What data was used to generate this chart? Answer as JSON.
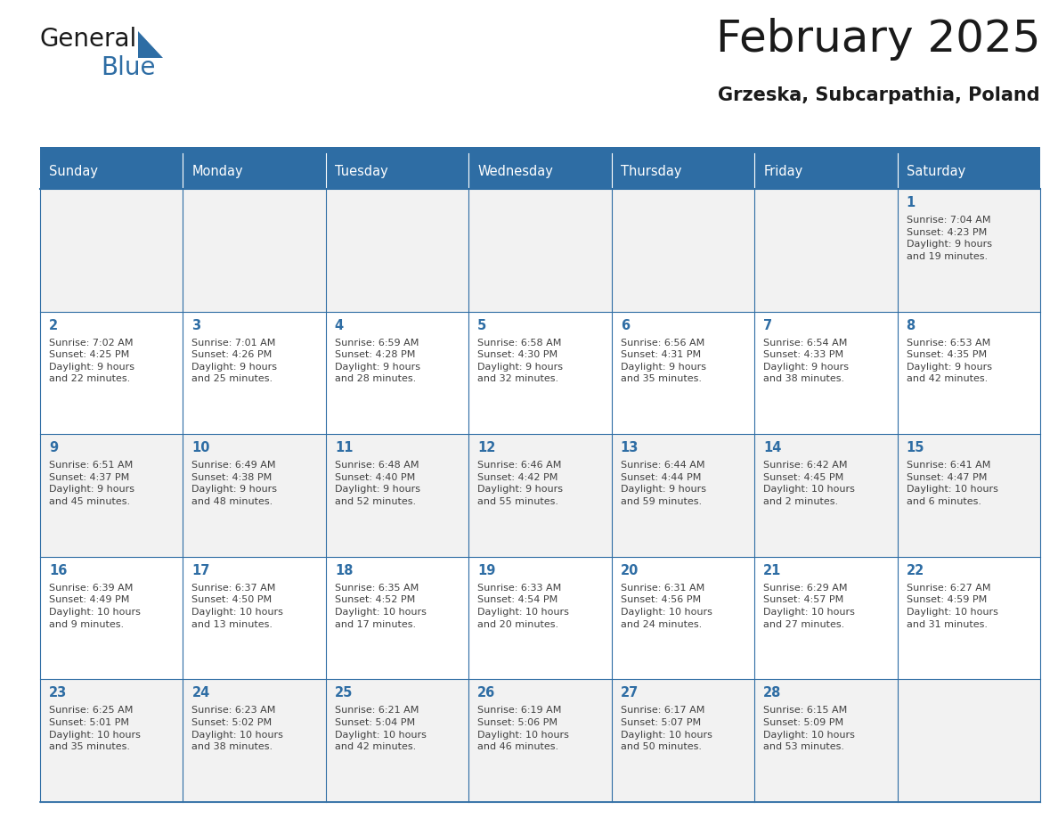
{
  "title": "February 2025",
  "subtitle": "Grzeska, Subcarpathia, Poland",
  "days_of_week": [
    "Sunday",
    "Monday",
    "Tuesday",
    "Wednesday",
    "Thursday",
    "Friday",
    "Saturday"
  ],
  "header_bg": "#2E6DA4",
  "header_text": "#FFFFFF",
  "cell_bg_odd": "#F2F2F2",
  "cell_bg_even": "#FFFFFF",
  "border_color": "#2E6DA4",
  "day_number_color": "#2E6DA4",
  "info_text_color": "#404040",
  "cal_data": [
    [
      null,
      null,
      null,
      null,
      null,
      null,
      {
        "day": 1,
        "sunrise": "7:04 AM",
        "sunset": "4:23 PM",
        "daylight": "9 hours\nand 19 minutes."
      }
    ],
    [
      {
        "day": 2,
        "sunrise": "7:02 AM",
        "sunset": "4:25 PM",
        "daylight": "9 hours\nand 22 minutes."
      },
      {
        "day": 3,
        "sunrise": "7:01 AM",
        "sunset": "4:26 PM",
        "daylight": "9 hours\nand 25 minutes."
      },
      {
        "day": 4,
        "sunrise": "6:59 AM",
        "sunset": "4:28 PM",
        "daylight": "9 hours\nand 28 minutes."
      },
      {
        "day": 5,
        "sunrise": "6:58 AM",
        "sunset": "4:30 PM",
        "daylight": "9 hours\nand 32 minutes."
      },
      {
        "day": 6,
        "sunrise": "6:56 AM",
        "sunset": "4:31 PM",
        "daylight": "9 hours\nand 35 minutes."
      },
      {
        "day": 7,
        "sunrise": "6:54 AM",
        "sunset": "4:33 PM",
        "daylight": "9 hours\nand 38 minutes."
      },
      {
        "day": 8,
        "sunrise": "6:53 AM",
        "sunset": "4:35 PM",
        "daylight": "9 hours\nand 42 minutes."
      }
    ],
    [
      {
        "day": 9,
        "sunrise": "6:51 AM",
        "sunset": "4:37 PM",
        "daylight": "9 hours\nand 45 minutes."
      },
      {
        "day": 10,
        "sunrise": "6:49 AM",
        "sunset": "4:38 PM",
        "daylight": "9 hours\nand 48 minutes."
      },
      {
        "day": 11,
        "sunrise": "6:48 AM",
        "sunset": "4:40 PM",
        "daylight": "9 hours\nand 52 minutes."
      },
      {
        "day": 12,
        "sunrise": "6:46 AM",
        "sunset": "4:42 PM",
        "daylight": "9 hours\nand 55 minutes."
      },
      {
        "day": 13,
        "sunrise": "6:44 AM",
        "sunset": "4:44 PM",
        "daylight": "9 hours\nand 59 minutes."
      },
      {
        "day": 14,
        "sunrise": "6:42 AM",
        "sunset": "4:45 PM",
        "daylight": "10 hours\nand 2 minutes."
      },
      {
        "day": 15,
        "sunrise": "6:41 AM",
        "sunset": "4:47 PM",
        "daylight": "10 hours\nand 6 minutes."
      }
    ],
    [
      {
        "day": 16,
        "sunrise": "6:39 AM",
        "sunset": "4:49 PM",
        "daylight": "10 hours\nand 9 minutes."
      },
      {
        "day": 17,
        "sunrise": "6:37 AM",
        "sunset": "4:50 PM",
        "daylight": "10 hours\nand 13 minutes."
      },
      {
        "day": 18,
        "sunrise": "6:35 AM",
        "sunset": "4:52 PM",
        "daylight": "10 hours\nand 17 minutes."
      },
      {
        "day": 19,
        "sunrise": "6:33 AM",
        "sunset": "4:54 PM",
        "daylight": "10 hours\nand 20 minutes."
      },
      {
        "day": 20,
        "sunrise": "6:31 AM",
        "sunset": "4:56 PM",
        "daylight": "10 hours\nand 24 minutes."
      },
      {
        "day": 21,
        "sunrise": "6:29 AM",
        "sunset": "4:57 PM",
        "daylight": "10 hours\nand 27 minutes."
      },
      {
        "day": 22,
        "sunrise": "6:27 AM",
        "sunset": "4:59 PM",
        "daylight": "10 hours\nand 31 minutes."
      }
    ],
    [
      {
        "day": 23,
        "sunrise": "6:25 AM",
        "sunset": "5:01 PM",
        "daylight": "10 hours\nand 35 minutes."
      },
      {
        "day": 24,
        "sunrise": "6:23 AM",
        "sunset": "5:02 PM",
        "daylight": "10 hours\nand 38 minutes."
      },
      {
        "day": 25,
        "sunrise": "6:21 AM",
        "sunset": "5:04 PM",
        "daylight": "10 hours\nand 42 minutes."
      },
      {
        "day": 26,
        "sunrise": "6:19 AM",
        "sunset": "5:06 PM",
        "daylight": "10 hours\nand 46 minutes."
      },
      {
        "day": 27,
        "sunrise": "6:17 AM",
        "sunset": "5:07 PM",
        "daylight": "10 hours\nand 50 minutes."
      },
      {
        "day": 28,
        "sunrise": "6:15 AM",
        "sunset": "5:09 PM",
        "daylight": "10 hours\nand 53 minutes."
      },
      null
    ]
  ],
  "fig_width": 11.88,
  "fig_height": 9.18,
  "dpi": 100
}
